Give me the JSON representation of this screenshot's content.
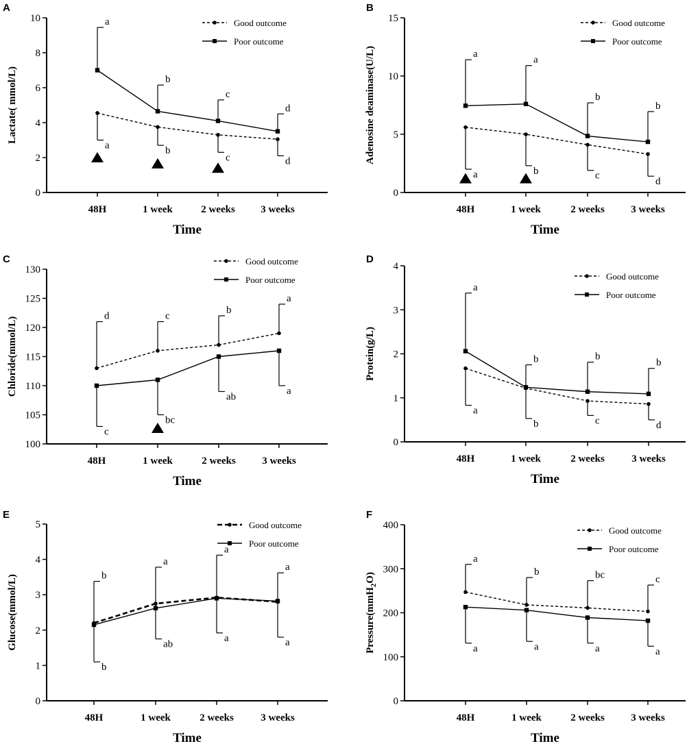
{
  "figure": {
    "panels": [
      {
        "id": "A",
        "chart_data": {
          "type": "line",
          "title": "",
          "xlabel": "Time",
          "ylabel": "Lactate( mmol/L)",
          "categories": [
            "48H",
            "1 week",
            "2 weeks",
            "3 weeks"
          ],
          "ylim": [
            0,
            10
          ],
          "yticks": [
            0,
            2,
            4,
            6,
            8,
            10
          ],
          "legend": {
            "position": "top-right"
          },
          "series": [
            {
              "name": "Good outcome",
              "style": "dashed",
              "marker": "circle",
              "values": [
                4.55,
                3.75,
                3.3,
                3.05
              ],
              "err_upper": [
                4.55,
                3.75,
                3.3,
                3.05
              ],
              "err_lower": [
                3.0,
                2.7,
                2.3,
                2.1
              ],
              "letters": [
                "a",
                "b",
                "c",
                "d"
              ]
            },
            {
              "name": "Poor outcome",
              "style": "solid",
              "marker": "square",
              "values": [
                7.0,
                4.65,
                4.1,
                3.5
              ],
              "err_upper": [
                9.45,
                6.15,
                5.3,
                4.5
              ],
              "err_lower": [
                7.0,
                4.65,
                4.1,
                3.5
              ],
              "letters": [
                "a",
                "b",
                "c",
                "d"
              ]
            }
          ],
          "triangles": [
            [
              0,
              2.0
            ],
            [
              1,
              1.65
            ],
            [
              2,
              1.4
            ]
          ]
        }
      },
      {
        "id": "B",
        "chart_data": {
          "type": "line",
          "title": "",
          "xlabel": "Time",
          "ylabel": "Adenosine deaminase(U/L)",
          "categories": [
            "48H",
            "1 week",
            "2 weeks",
            "3 weeks"
          ],
          "ylim": [
            0,
            15
          ],
          "yticks": [
            0,
            5,
            10,
            15
          ],
          "legend": {
            "position": "top-right"
          },
          "series": [
            {
              "name": "Good outcome",
              "style": "dashed",
              "marker": "circle",
              "values": [
                5.6,
                5.0,
                4.1,
                3.3
              ],
              "err_upper": [
                5.6,
                5.0,
                4.1,
                3.3
              ],
              "err_lower": [
                2.0,
                2.3,
                1.9,
                1.4
              ],
              "letters": [
                "a",
                "b",
                "c",
                "d"
              ]
            },
            {
              "name": "Poor outcome",
              "style": "solid",
              "marker": "square",
              "values": [
                7.45,
                7.6,
                4.85,
                4.35
              ],
              "err_upper": [
                11.4,
                10.9,
                7.7,
                6.95
              ],
              "err_lower": [
                7.45,
                7.6,
                4.85,
                4.35
              ],
              "letters": [
                "a",
                "a",
                "b",
                "b"
              ]
            }
          ],
          "triangles": [
            [
              0,
              1.2
            ],
            [
              1,
              1.2
            ]
          ]
        }
      },
      {
        "id": "C",
        "chart_data": {
          "type": "line",
          "title": "",
          "xlabel": "Time",
          "ylabel": "Chloride(mmol/L)",
          "categories": [
            "48H",
            "1 week",
            "2 weeks",
            "3 weeks"
          ],
          "ylim": [
            100,
            130
          ],
          "yticks": [
            100,
            105,
            110,
            115,
            120,
            125,
            130
          ],
          "legend": {
            "position": "top-right"
          },
          "series": [
            {
              "name": "Good outcome",
              "style": "dashed",
              "marker": "circle",
              "values": [
                113,
                116,
                117,
                119
              ],
              "err_upper": [
                121,
                121,
                122,
                124
              ],
              "err_lower": [
                113,
                116,
                117,
                119
              ],
              "letters": [
                "d",
                "c",
                "b",
                "a"
              ]
            },
            {
              "name": "Poor outcome",
              "style": "solid",
              "marker": "square",
              "values": [
                110,
                111,
                115,
                116
              ],
              "err_upper": [
                110,
                111,
                115,
                116
              ],
              "err_lower": [
                103,
                105,
                109,
                110
              ],
              "letters": [
                "c",
                "bc",
                "ab",
                "a"
              ]
            }
          ],
          "triangles": [
            [
              1,
              102.7
            ]
          ]
        }
      },
      {
        "id": "D",
        "chart_data": {
          "type": "line",
          "title": "",
          "xlabel": "Time",
          "ylabel": "Protein(g/L)",
          "categories": [
            "48H",
            "1 week",
            "2 weeks",
            "3 weeks"
          ],
          "ylim": [
            0,
            4
          ],
          "yticks": [
            0,
            1,
            2,
            3,
            4
          ],
          "legend": {
            "position": "top-right"
          },
          "series": [
            {
              "name": "Good outcome",
              "style": "dashed",
              "marker": "circle",
              "values": [
                1.67,
                1.22,
                0.93,
                0.86
              ],
              "err_upper": [
                1.67,
                1.22,
                0.93,
                0.86
              ],
              "err_lower": [
                0.83,
                0.53,
                0.6,
                0.5
              ],
              "letters": [
                "a",
                "b",
                "c",
                "d"
              ]
            },
            {
              "name": "Poor outcome",
              "style": "solid",
              "marker": "square",
              "values": [
                2.06,
                1.24,
                1.14,
                1.09
              ],
              "err_upper": [
                3.38,
                1.75,
                1.81,
                1.67
              ],
              "err_lower": [
                2.06,
                1.24,
                1.14,
                1.09
              ],
              "letters": [
                "a",
                "b",
                "b",
                "b"
              ]
            }
          ],
          "triangles": []
        }
      },
      {
        "id": "E",
        "chart_data": {
          "type": "line",
          "title": "",
          "xlabel": "Time",
          "ylabel": "Glucose(mmol/L)",
          "categories": [
            "48H",
            "1 week",
            "2 weeks",
            "3 weeks"
          ],
          "ylim": [
            0,
            5
          ],
          "yticks": [
            0,
            1,
            2,
            3,
            4,
            5
          ],
          "legend": {
            "position": "top-right"
          },
          "series": [
            {
              "name": "Good outcome",
              "style": "bold-dashed",
              "marker": "circle",
              "values": [
                2.2,
                2.75,
                2.92,
                2.8
              ],
              "err_upper": [
                2.2,
                2.75,
                2.92,
                2.8
              ],
              "err_lower": [
                1.1,
                1.75,
                1.92,
                1.8
              ],
              "letters": [
                "b",
                "ab",
                "a",
                "a"
              ]
            },
            {
              "name": "Poor outcome",
              "style": "solid",
              "marker": "square",
              "values": [
                2.15,
                2.62,
                2.9,
                2.82
              ],
              "err_upper": [
                3.38,
                3.78,
                4.12,
                3.62
              ],
              "err_lower": [
                2.15,
                2.62,
                2.9,
                2.82
              ],
              "letters": [
                "b",
                "a",
                "a",
                "a"
              ]
            }
          ],
          "triangles": []
        }
      },
      {
        "id": "F",
        "chart_data": {
          "type": "line",
          "title": "",
          "xlabel": "Time",
          "ylabel": "Pressure(mmH",
          "ylabel_sub": "2",
          "ylabel_end": "O)",
          "categories": [
            "48H",
            "1 week",
            "2 weeks",
            "3 weeks"
          ],
          "ylim": [
            0,
            400
          ],
          "yticks": [
            0,
            100,
            200,
            300,
            400
          ],
          "legend": {
            "position": "top-right"
          },
          "series": [
            {
              "name": "Good outcome",
              "style": "dashed",
              "marker": "circle",
              "values": [
                247,
                218,
                211,
                203
              ],
              "err_upper": [
                310,
                280,
                273,
                263
              ],
              "err_lower": [
                247,
                218,
                211,
                203
              ],
              "letters": [
                "a",
                "b",
                "bc",
                "c"
              ]
            },
            {
              "name": "Poor outcome",
              "style": "solid",
              "marker": "square",
              "values": [
                213,
                206,
                189,
                182
              ],
              "err_upper": [
                213,
                206,
                189,
                182
              ],
              "err_lower": [
                131,
                135,
                131,
                124
              ],
              "letters": [
                "a",
                "a",
                "a",
                "a"
              ]
            }
          ],
          "triangles": []
        }
      }
    ]
  }
}
